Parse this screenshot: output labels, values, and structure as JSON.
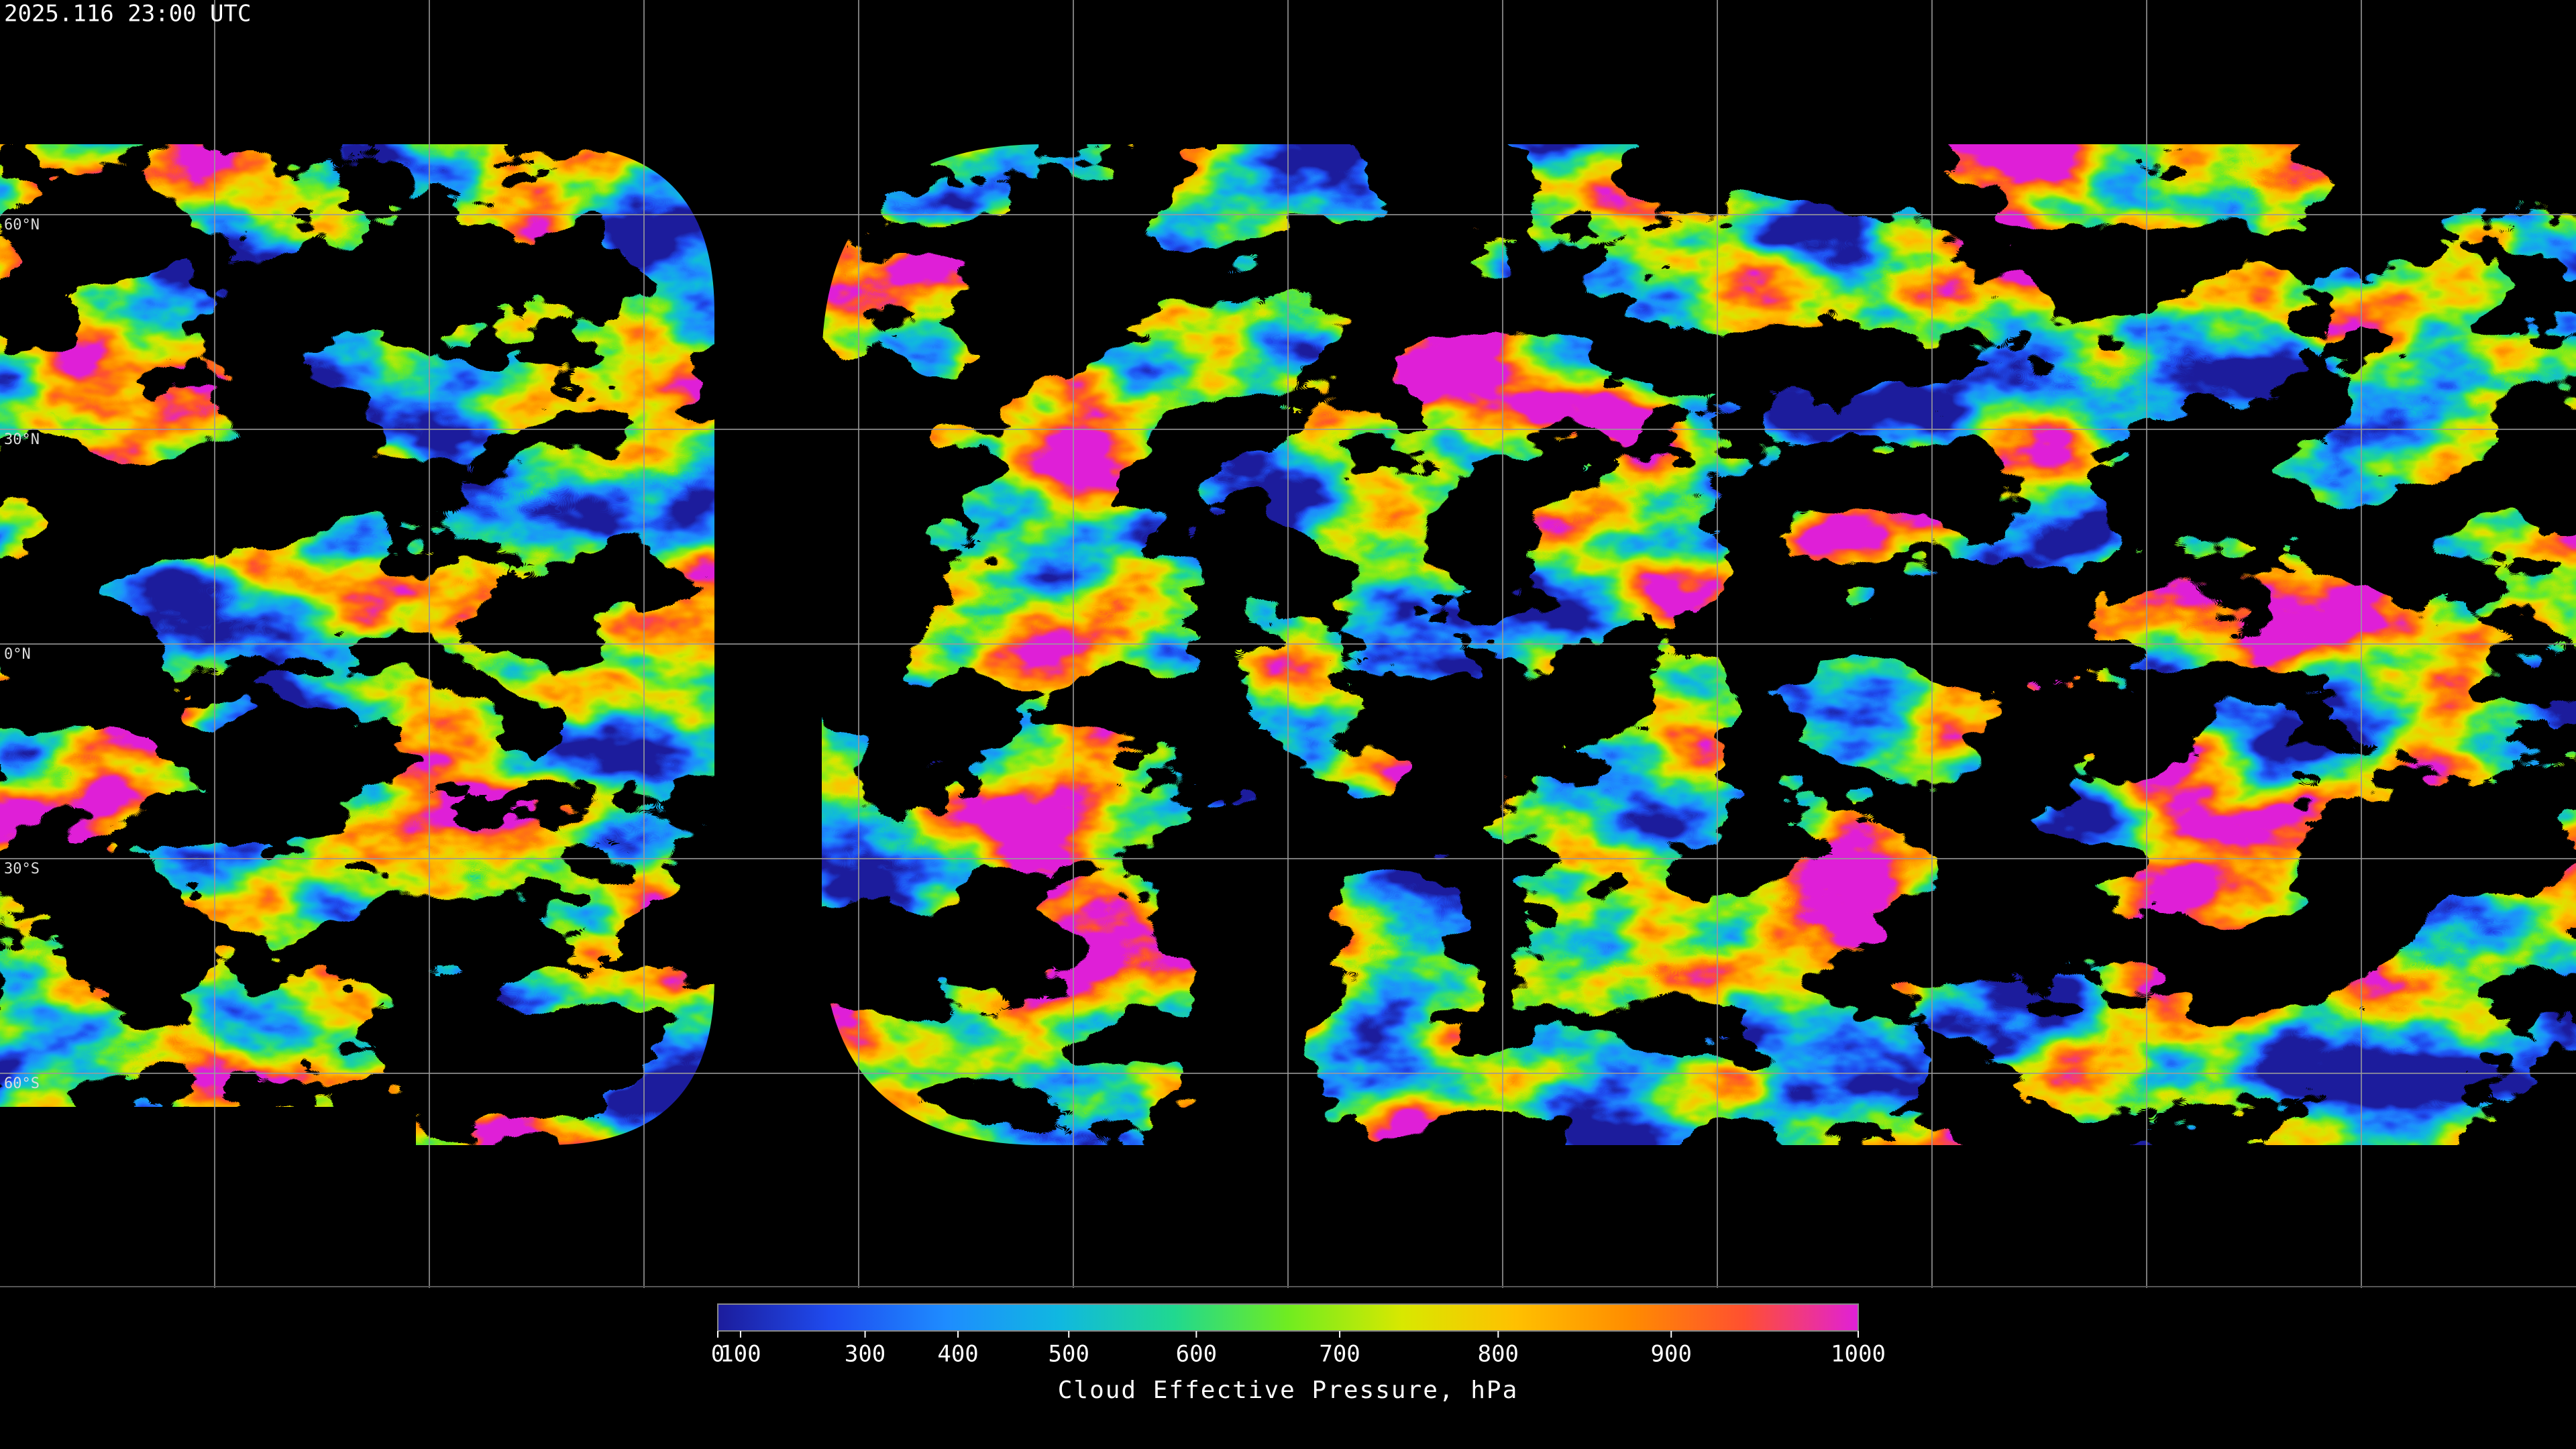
{
  "header": {
    "timestamp": "2025.116 23:00 UTC"
  },
  "map": {
    "type": "map",
    "ylim": [
      90,
      -90
    ],
    "lat_grid": [
      {
        "value": 60,
        "label": "60°N"
      },
      {
        "value": 30,
        "label": "30°N"
      },
      {
        "value": 0,
        "label": "0°N"
      },
      {
        "value": -30,
        "label": "30°S"
      },
      {
        "value": -60,
        "label": "60°S"
      }
    ]
  },
  "colorbar": {
    "title": "Cloud Effective Pressure, hPa",
    "clim": [
      0,
      1000
    ],
    "scale": "power",
    "exponent": 1.7,
    "ticks": [
      0,
      100,
      300,
      400,
      500,
      600,
      700,
      800,
      900,
      1000
    ],
    "colors": [
      "#1c1c9c",
      "#1f4cf0",
      "#1e8cff",
      "#10b8e0",
      "#20d890",
      "#70ec20",
      "#d8e800",
      "#ffc000",
      "#ff8c00",
      "#ff5030",
      "#e020d8"
    ]
  }
}
